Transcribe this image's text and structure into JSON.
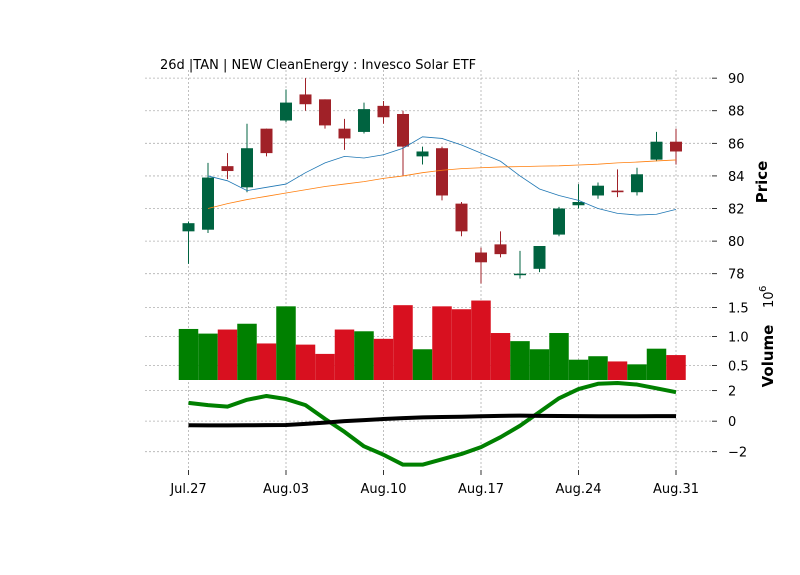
{
  "chart_data": {
    "type": "candlestick",
    "title": "26d |TAN | NEW CleanEnergy : Invesco Solar ETF",
    "x_tick_labels": [
      "Jul.27",
      "Aug.03",
      "Aug.10",
      "Aug.17",
      "Aug.24",
      "Aug.31"
    ],
    "x_tick_index": [
      0,
      5,
      10,
      15,
      20,
      25
    ],
    "price_panel": {
      "ylabel": "Price",
      "ylim": [
        77,
        90.5
      ],
      "yticks": [
        78,
        80,
        82,
        84,
        86,
        88,
        90
      ],
      "candles": [
        {
          "open": 80.6,
          "high": 81.2,
          "low": 78.6,
          "close": 81.1
        },
        {
          "open": 80.7,
          "high": 84.8,
          "low": 80.5,
          "close": 83.9
        },
        {
          "open": 84.6,
          "high": 85.4,
          "low": 83.8,
          "close": 84.3
        },
        {
          "open": 83.3,
          "high": 87.2,
          "low": 83.0,
          "close": 85.7
        },
        {
          "open": 86.9,
          "high": 86.9,
          "low": 85.2,
          "close": 85.4
        },
        {
          "open": 87.4,
          "high": 89.3,
          "low": 87.3,
          "close": 88.5
        },
        {
          "open": 89.0,
          "high": 90.0,
          "low": 88.0,
          "close": 88.4
        },
        {
          "open": 88.7,
          "high": 88.7,
          "low": 86.9,
          "close": 87.1
        },
        {
          "open": 86.9,
          "high": 87.5,
          "low": 85.6,
          "close": 86.3
        },
        {
          "open": 86.7,
          "high": 88.5,
          "low": 86.6,
          "close": 88.1
        },
        {
          "open": 88.3,
          "high": 88.6,
          "low": 87.2,
          "close": 87.6
        },
        {
          "open": 87.8,
          "high": 88.0,
          "low": 84.0,
          "close": 85.8
        },
        {
          "open": 85.2,
          "high": 85.8,
          "low": 84.7,
          "close": 85.5
        },
        {
          "open": 85.7,
          "high": 85.8,
          "low": 82.5,
          "close": 82.8
        },
        {
          "open": 82.3,
          "high": 82.4,
          "low": 80.3,
          "close": 80.6
        },
        {
          "open": 79.3,
          "high": 79.6,
          "low": 77.4,
          "close": 78.7
        },
        {
          "open": 79.8,
          "high": 80.6,
          "low": 79.0,
          "close": 79.2
        },
        {
          "open": 78.0,
          "high": 79.4,
          "low": 77.7,
          "close": 78.0
        },
        {
          "open": 78.3,
          "high": 79.7,
          "low": 78.1,
          "close": 79.7
        },
        {
          "open": 80.4,
          "high": 82.1,
          "low": 80.3,
          "close": 82.0
        },
        {
          "open": 82.2,
          "high": 83.5,
          "low": 82.0,
          "close": 82.4
        },
        {
          "open": 82.8,
          "high": 83.6,
          "low": 82.6,
          "close": 83.4
        },
        {
          "open": 83.1,
          "high": 84.4,
          "low": 82.7,
          "close": 83.0
        },
        {
          "open": 83.0,
          "high": 84.5,
          "low": 82.8,
          "close": 84.1
        },
        {
          "open": 85.0,
          "high": 86.7,
          "low": 84.9,
          "close": 86.1
        },
        {
          "open": 86.1,
          "high": 86.9,
          "low": 84.7,
          "close": 85.5
        }
      ],
      "ma_short": [
        null,
        84.0,
        83.7,
        83.1,
        83.3,
        83.5,
        84.2,
        84.8,
        85.2,
        85.1,
        85.3,
        85.7,
        86.4,
        86.3,
        85.9,
        85.4,
        84.9,
        84.0,
        83.2,
        82.8,
        82.5,
        82.0,
        81.7,
        81.6,
        81.65,
        81.95
      ],
      "ma_long": [
        null,
        82.0,
        82.3,
        82.55,
        82.75,
        82.95,
        83.15,
        83.35,
        83.5,
        83.65,
        83.85,
        84.0,
        84.2,
        84.35,
        84.45,
        84.5,
        84.55,
        84.57,
        84.6,
        84.62,
        84.67,
        84.72,
        84.8,
        84.85,
        84.92,
        84.98
      ]
    },
    "volume_panel": {
      "ylabel": "Volume",
      "scale_label": "10",
      "scale_exponent": "6",
      "ylim": [
        0.25,
        1.75
      ],
      "yticks": [
        0.5,
        1.0,
        1.5
      ],
      "ytick_labels": [
        "0.5",
        "1.0",
        "1.5"
      ],
      "values": [
        1.13,
        1.05,
        1.12,
        1.22,
        0.88,
        1.52,
        0.86,
        0.7,
        1.12,
        1.09,
        0.96,
        1.54,
        0.78,
        1.52,
        1.47,
        1.62,
        1.06,
        0.92,
        0.78,
        1.06,
        0.6,
        0.66,
        0.57,
        0.52,
        0.79,
        0.68
      ]
    },
    "indicator_panel": {
      "ylim": [
        -3.2,
        2.5
      ],
      "yticks": [
        -2,
        0,
        2
      ],
      "ytick_labels": [
        "−2",
        "0",
        "2"
      ],
      "series": [
        {
          "color": "#008000",
          "values": [
            1.2,
            1.05,
            0.95,
            1.4,
            1.65,
            1.45,
            1.05,
            0.15,
            -0.7,
            -1.65,
            -2.2,
            -2.85,
            -2.85,
            -2.5,
            -2.15,
            -1.7,
            -1.05,
            -0.3,
            0.6,
            1.5,
            2.1,
            2.45,
            2.5,
            2.4,
            2.15,
            1.9
          ]
        },
        {
          "color": "#000000",
          "values": [
            -0.27,
            -0.28,
            -0.28,
            -0.27,
            -0.26,
            -0.25,
            -0.18,
            -0.1,
            0.0,
            0.07,
            0.14,
            0.2,
            0.25,
            0.27,
            0.29,
            0.32,
            0.35,
            0.36,
            0.35,
            0.34,
            0.33,
            0.32,
            0.32,
            0.32,
            0.33,
            0.33
          ]
        }
      ]
    },
    "colors": {
      "up": "#006340",
      "down": "#a02128",
      "volume_up": "#008000",
      "volume_down": "#d8101f",
      "ma_short": "#1f77b4",
      "ma_long": "#ff7f0e",
      "grid": "#b0b0b0"
    },
    "grid": true
  }
}
